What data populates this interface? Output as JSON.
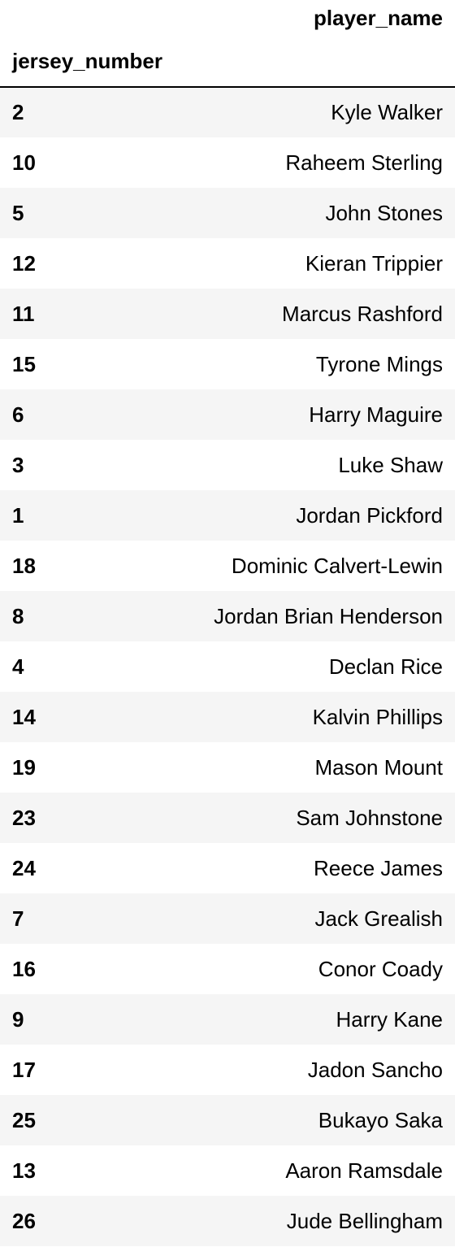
{
  "table": {
    "column_header": "player_name",
    "index_header": "jersey_number",
    "rows": [
      {
        "jersey_number": "2",
        "player_name": "Kyle Walker"
      },
      {
        "jersey_number": "10",
        "player_name": "Raheem Sterling"
      },
      {
        "jersey_number": "5",
        "player_name": "John Stones"
      },
      {
        "jersey_number": "12",
        "player_name": "Kieran Trippier"
      },
      {
        "jersey_number": "11",
        "player_name": "Marcus Rashford"
      },
      {
        "jersey_number": "15",
        "player_name": "Tyrone Mings"
      },
      {
        "jersey_number": "6",
        "player_name": "Harry Maguire"
      },
      {
        "jersey_number": "3",
        "player_name": "Luke Shaw"
      },
      {
        "jersey_number": "1",
        "player_name": "Jordan Pickford"
      },
      {
        "jersey_number": "18",
        "player_name": "Dominic Calvert-Lewin"
      },
      {
        "jersey_number": "8",
        "player_name": "Jordan Brian Henderson"
      },
      {
        "jersey_number": "4",
        "player_name": "Declan Rice"
      },
      {
        "jersey_number": "14",
        "player_name": "Kalvin Phillips"
      },
      {
        "jersey_number": "19",
        "player_name": "Mason Mount"
      },
      {
        "jersey_number": "23",
        "player_name": "Sam Johnstone"
      },
      {
        "jersey_number": "24",
        "player_name": "Reece James"
      },
      {
        "jersey_number": "7",
        "player_name": "Jack Grealish"
      },
      {
        "jersey_number": "16",
        "player_name": "Conor Coady"
      },
      {
        "jersey_number": "9",
        "player_name": "Harry Kane"
      },
      {
        "jersey_number": "17",
        "player_name": "Jadon Sancho"
      },
      {
        "jersey_number": "25",
        "player_name": "Bukayo Saka"
      },
      {
        "jersey_number": "13",
        "player_name": "Aaron Ramsdale"
      },
      {
        "jersey_number": "26",
        "player_name": "Jude Bellingham"
      }
    ]
  }
}
